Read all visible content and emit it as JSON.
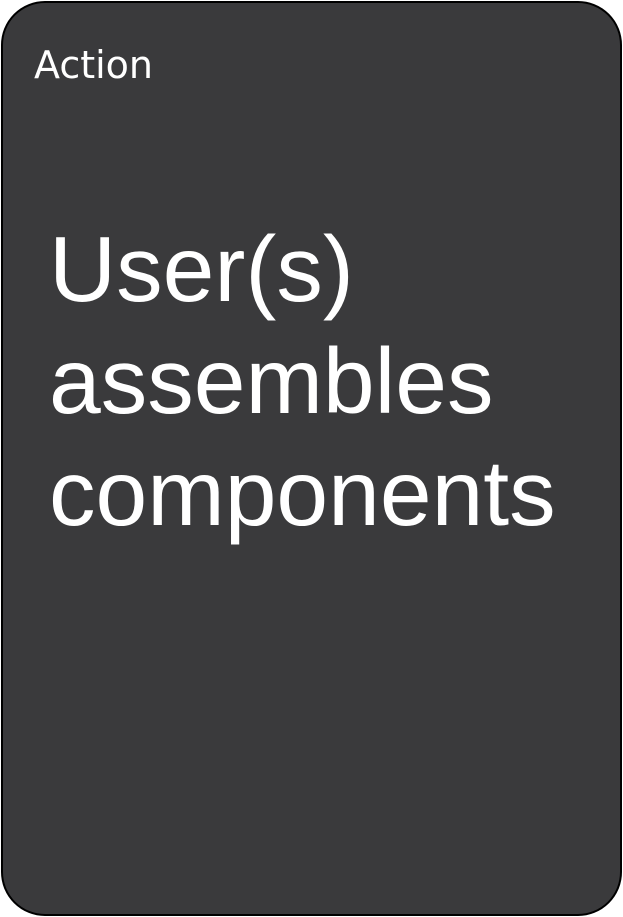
{
  "card": {
    "category": "Action",
    "title_lines": [
      "User(s)",
      "assembles",
      "components"
    ]
  }
}
